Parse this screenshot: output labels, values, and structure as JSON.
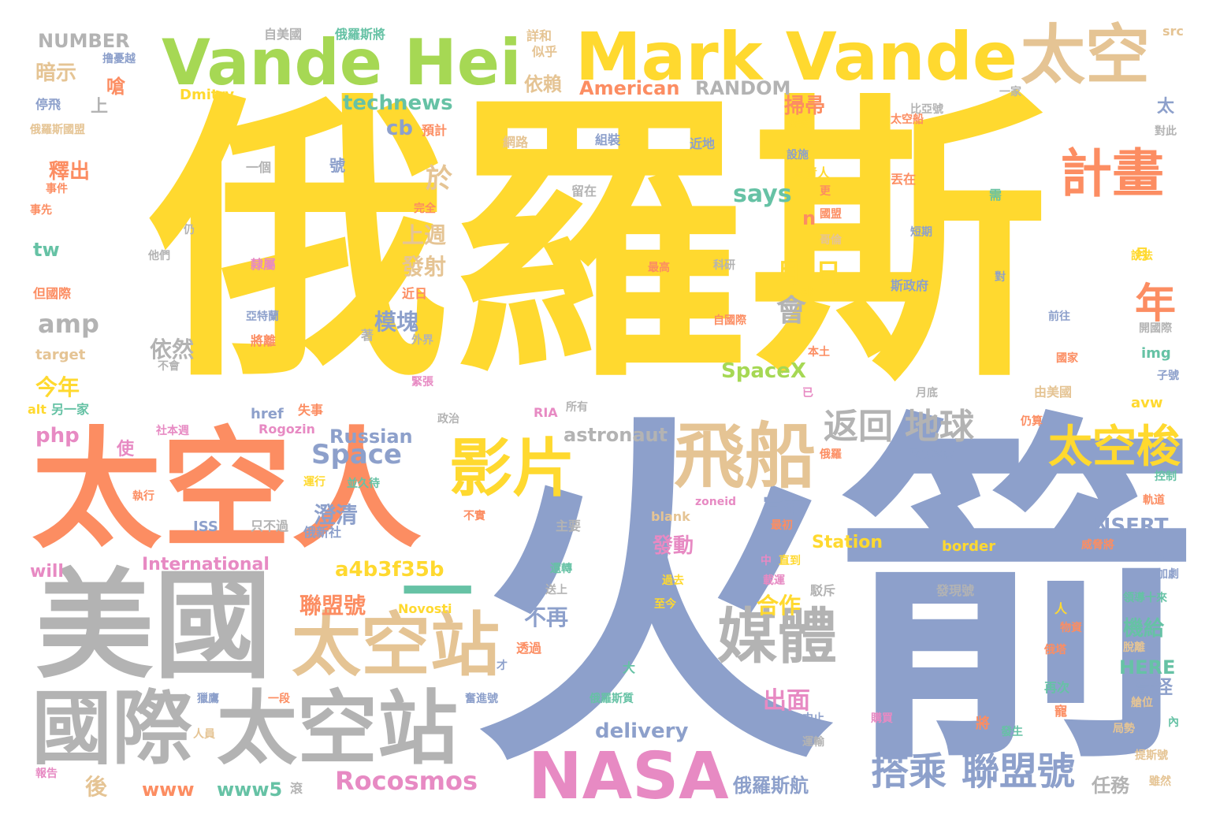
{
  "palette": {
    "yellow": "#ffd92f",
    "orange": "#fc8d62",
    "blue": "#8da0cb",
    "gray": "#b3b3b3",
    "tan": "#e5c494",
    "green": "#a6d854",
    "pink": "#e78ac3",
    "teal": "#66c2a5"
  },
  "words": [
    {
      "text": "俄羅斯",
      "color": "yellow"
    },
    {
      "text": "火箭",
      "color": "blue"
    },
    {
      "text": "太空人",
      "color": "orange"
    },
    {
      "text": "美國",
      "color": "gray"
    },
    {
      "text": "Vande Hei",
      "color": "green"
    },
    {
      "text": "Mark Vande",
      "color": "yellow"
    },
    {
      "text": "太空",
      "color": "tan"
    },
    {
      "text": "國際",
      "color": "gray"
    },
    {
      "text": "太空站",
      "color": "gray"
    },
    {
      "text": "太空站",
      "color": "tan"
    },
    {
      "text": "NASA",
      "color": "pink"
    },
    {
      "text": "飛船",
      "color": "tan"
    },
    {
      "text": "影片",
      "color": "yellow"
    },
    {
      "text": "媒體",
      "color": "gray"
    },
    {
      "text": "計畫",
      "color": "orange"
    },
    {
      "text": "太空梭",
      "color": "yellow"
    },
    {
      "text": "搭乘",
      "color": "blue"
    },
    {
      "text": "聯盟號",
      "color": "blue"
    },
    {
      "text": "返回",
      "color": "gray"
    },
    {
      "text": "地球",
      "color": "gray"
    },
    {
      "text": "Rocosmos",
      "color": "pink"
    },
    {
      "text": "Space",
      "color": "blue"
    },
    {
      "text": "says",
      "color": "teal"
    },
    {
      "text": "年",
      "color": "orange"
    },
    {
      "text": "月",
      "color": "yellow"
    },
    {
      "text": "日",
      "color": "yellow"
    },
    {
      "text": "會",
      "color": "gray"
    },
    {
      "text": "SpaceX",
      "color": "green"
    },
    {
      "text": "technews",
      "color": "teal"
    },
    {
      "text": "cb",
      "color": "blue"
    },
    {
      "text": "於",
      "color": "tan"
    },
    {
      "text": "上週",
      "color": "tan"
    },
    {
      "text": "發射",
      "color": "tan"
    },
    {
      "text": "模塊",
      "color": "blue"
    },
    {
      "text": "依然",
      "color": "gray"
    },
    {
      "text": "amp",
      "color": "gray"
    },
    {
      "text": "今年",
      "color": "yellow"
    },
    {
      "text": "php",
      "color": "pink"
    },
    {
      "text": "Russian",
      "color": "blue"
    },
    {
      "text": "astronaut",
      "color": "gray"
    },
    {
      "text": "a4b3f35b",
      "color": "yellow"
    },
    {
      "text": "澄清",
      "color": "blue"
    },
    {
      "text": "聯盟號",
      "color": "orange"
    },
    {
      "text": "不再",
      "color": "blue"
    },
    {
      "text": "合作",
      "color": "yellow"
    },
    {
      "text": "宣布",
      "color": "blue"
    },
    {
      "text": "發動",
      "color": "pink"
    },
    {
      "text": "機給",
      "color": "teal"
    },
    {
      "text": "出面",
      "color": "pink"
    },
    {
      "text": "delivery",
      "color": "blue"
    },
    {
      "text": "www",
      "color": "orange"
    },
    {
      "text": "www5",
      "color": "teal"
    },
    {
      "text": "International",
      "color": "pink"
    },
    {
      "text": "will",
      "color": "pink"
    },
    {
      "text": "ISS",
      "color": "blue"
    },
    {
      "text": "Station",
      "color": "yellow"
    },
    {
      "text": "INSERT",
      "color": "blue"
    },
    {
      "text": "HERE",
      "color": "teal"
    },
    {
      "text": "俄羅斯航",
      "color": "blue"
    },
    {
      "text": "任務",
      "color": "gray"
    },
    {
      "text": "奇怪",
      "color": "blue"
    },
    {
      "text": "後",
      "color": "tan"
    },
    {
      "text": "NUMBER",
      "color": "gray"
    },
    {
      "text": "暗示",
      "color": "tan"
    },
    {
      "text": "RANDOM",
      "color": "gray"
    },
    {
      "text": "American",
      "color": "orange"
    },
    {
      "text": "依賴",
      "color": "tan"
    },
    {
      "text": "Dmitry",
      "color": "yellow"
    },
    {
      "text": "掃帚",
      "color": "orange"
    },
    {
      "text": "釋出",
      "color": "orange"
    },
    {
      "text": "tw",
      "color": "teal"
    },
    {
      "text": "n",
      "color": "orange"
    },
    {
      "text": "Novosti",
      "color": "yellow"
    },
    {
      "text": "blank",
      "color": "tan"
    },
    {
      "text": "border",
      "color": "yellow"
    },
    {
      "text": "zoneid",
      "color": "pink"
    },
    {
      "text": "Rogozin",
      "color": "pink"
    },
    {
      "text": "href",
      "color": "blue"
    },
    {
      "text": "alt",
      "color": "yellow"
    },
    {
      "text": "target",
      "color": "tan"
    },
    {
      "text": "img",
      "color": "teal"
    },
    {
      "text": "avw",
      "color": "yellow"
    },
    {
      "text": "src",
      "color": "tan"
    },
    {
      "text": "RIA",
      "color": "pink"
    },
    {
      "text": "ck",
      "color": "yellow"
    },
    {
      "text": "a",
      "color": "blue"
    },
    {
      "text": "自美國",
      "color": "gray"
    },
    {
      "text": "俄羅斯將",
      "color": "teal"
    },
    {
      "text": "詳和",
      "color": "tan"
    },
    {
      "text": "似乎",
      "color": "tan"
    },
    {
      "text": "撸憂越",
      "color": "blue"
    },
    {
      "text": "停飛",
      "color": "blue"
    },
    {
      "text": "上",
      "color": "gray"
    },
    {
      "text": "嗆",
      "color": "orange"
    },
    {
      "text": "俄羅斯國盟",
      "color": "tan"
    },
    {
      "text": "預計",
      "color": "orange"
    },
    {
      "text": "網路",
      "color": "tan"
    },
    {
      "text": "組裝",
      "color": "blue"
    },
    {
      "text": "近地",
      "color": "blue"
    },
    {
      "text": "事件",
      "color": "orange"
    },
    {
      "text": "事先",
      "color": "orange"
    },
    {
      "text": "一個",
      "color": "gray"
    },
    {
      "text": "留在",
      "color": "gray"
    },
    {
      "text": "完全",
      "color": "orange"
    },
    {
      "text": "仍",
      "color": "gray"
    },
    {
      "text": "他們",
      "color": "gray"
    },
    {
      "text": "隸屬",
      "color": "pink"
    },
    {
      "text": "但國際",
      "color": "orange"
    },
    {
      "text": "近日",
      "color": "orange"
    },
    {
      "text": "亞特蘭",
      "color": "blue"
    },
    {
      "text": "將離",
      "color": "orange"
    },
    {
      "text": "著",
      "color": "gray"
    },
    {
      "text": "外界",
      "color": "gray"
    },
    {
      "text": "不會",
      "color": "gray"
    },
    {
      "text": "緊張",
      "color": "pink"
    },
    {
      "text": "另一家",
      "color": "teal"
    },
    {
      "text": "失事",
      "color": "orange"
    },
    {
      "text": "社本週",
      "color": "pink"
    },
    {
      "text": "政治",
      "color": "gray"
    },
    {
      "text": "所有",
      "color": "gray"
    },
    {
      "text": "使",
      "color": "pink"
    },
    {
      "text": "運行",
      "color": "yellow"
    },
    {
      "text": "並久待",
      "color": "teal"
    },
    {
      "text": "執行",
      "color": "orange"
    },
    {
      "text": "只不過",
      "color": "gray"
    },
    {
      "text": "俄新社",
      "color": "blue"
    },
    {
      "text": "不實",
      "color": "orange"
    },
    {
      "text": "主要",
      "color": "gray"
    },
    {
      "text": "最初",
      "color": "orange"
    },
    {
      "text": "中",
      "color": "pink"
    },
    {
      "text": "直到",
      "color": "yellow"
    },
    {
      "text": "還轉",
      "color": "teal"
    },
    {
      "text": "過去",
      "color": "yellow"
    },
    {
      "text": "載運",
      "color": "pink"
    },
    {
      "text": "送上",
      "color": "gray"
    },
    {
      "text": "駁斥",
      "color": "gray"
    },
    {
      "text": "至今",
      "color": "yellow"
    },
    {
      "text": "發現號",
      "color": "gray"
    },
    {
      "text": "透過",
      "color": "orange"
    },
    {
      "text": "才",
      "color": "blue"
    },
    {
      "text": "大",
      "color": "teal"
    },
    {
      "text": "俄羅斯質",
      "color": "teal"
    },
    {
      "text": "奮進號",
      "color": "blue"
    },
    {
      "text": "一段",
      "color": "orange"
    },
    {
      "text": "獵鷹",
      "color": "blue"
    },
    {
      "text": "人員",
      "color": "tan"
    },
    {
      "text": "報告",
      "color": "pink"
    },
    {
      "text": "滾",
      "color": "gray"
    },
    {
      "text": "中止",
      "color": "blue"
    },
    {
      "text": "運輸",
      "color": "gray"
    },
    {
      "text": "購買",
      "color": "pink"
    },
    {
      "text": "將",
      "color": "orange"
    },
    {
      "text": "發生",
      "color": "teal"
    },
    {
      "text": "比亞號",
      "color": "gray"
    },
    {
      "text": "一家",
      "color": "gray"
    },
    {
      "text": "太空船",
      "color": "orange"
    },
    {
      "text": "發該",
      "color": "yellow"
    },
    {
      "text": "對此",
      "color": "gray"
    },
    {
      "text": "設施",
      "color": "blue"
    },
    {
      "text": "負責人",
      "color": "yellow"
    },
    {
      "text": "丟在",
      "color": "orange"
    },
    {
      "text": "更",
      "color": "orange"
    },
    {
      "text": "需",
      "color": "teal"
    },
    {
      "text": "國盟",
      "color": "orange"
    },
    {
      "text": "哥倫",
      "color": "tan"
    },
    {
      "text": "短期",
      "color": "blue"
    },
    {
      "text": "說法",
      "color": "yellow"
    },
    {
      "text": "最高",
      "color": "orange"
    },
    {
      "text": "科研",
      "color": "gray"
    },
    {
      "text": "斯政府",
      "color": "blue"
    },
    {
      "text": "對",
      "color": "blue"
    },
    {
      "text": "自國際",
      "color": "orange"
    },
    {
      "text": "前往",
      "color": "blue"
    },
    {
      "text": "開國際",
      "color": "gray"
    },
    {
      "text": "本土",
      "color": "orange"
    },
    {
      "text": "國家",
      "color": "orange"
    },
    {
      "text": "已",
      "color": "pink"
    },
    {
      "text": "月底",
      "color": "gray"
    },
    {
      "text": "由美國",
      "color": "tan"
    },
    {
      "text": "子號",
      "color": "blue"
    },
    {
      "text": "仍算",
      "color": "orange"
    },
    {
      "text": "俄羅",
      "color": "orange"
    },
    {
      "text": "歐美國家",
      "color": "blue"
    },
    {
      "text": "控制",
      "color": "teal"
    },
    {
      "text": "軌道",
      "color": "orange"
    },
    {
      "text": "威脅將",
      "color": "orange"
    },
    {
      "text": "加劇",
      "color": "blue"
    },
    {
      "text": "領導十來",
      "color": "teal"
    },
    {
      "text": "人",
      "color": "yellow"
    },
    {
      "text": "物資",
      "color": "orange"
    },
    {
      "text": "俄塔",
      "color": "orange"
    },
    {
      "text": "脫離",
      "color": "tan"
    },
    {
      "text": "再次",
      "color": "teal"
    },
    {
      "text": "艙位",
      "color": "tan"
    },
    {
      "text": "寵",
      "color": "orange"
    },
    {
      "text": "內",
      "color": "teal"
    },
    {
      "text": "局勢",
      "color": "tan"
    },
    {
      "text": "提斯號",
      "color": "tan"
    },
    {
      "text": "雖然",
      "color": "tan"
    },
    {
      "text": "太",
      "color": "blue"
    },
    {
      "text": "號",
      "color": "blue"
    },
    {
      "text": "月",
      "color": "yellow"
    },
    {
      "text": "一",
      "color": "teal"
    }
  ]
}
